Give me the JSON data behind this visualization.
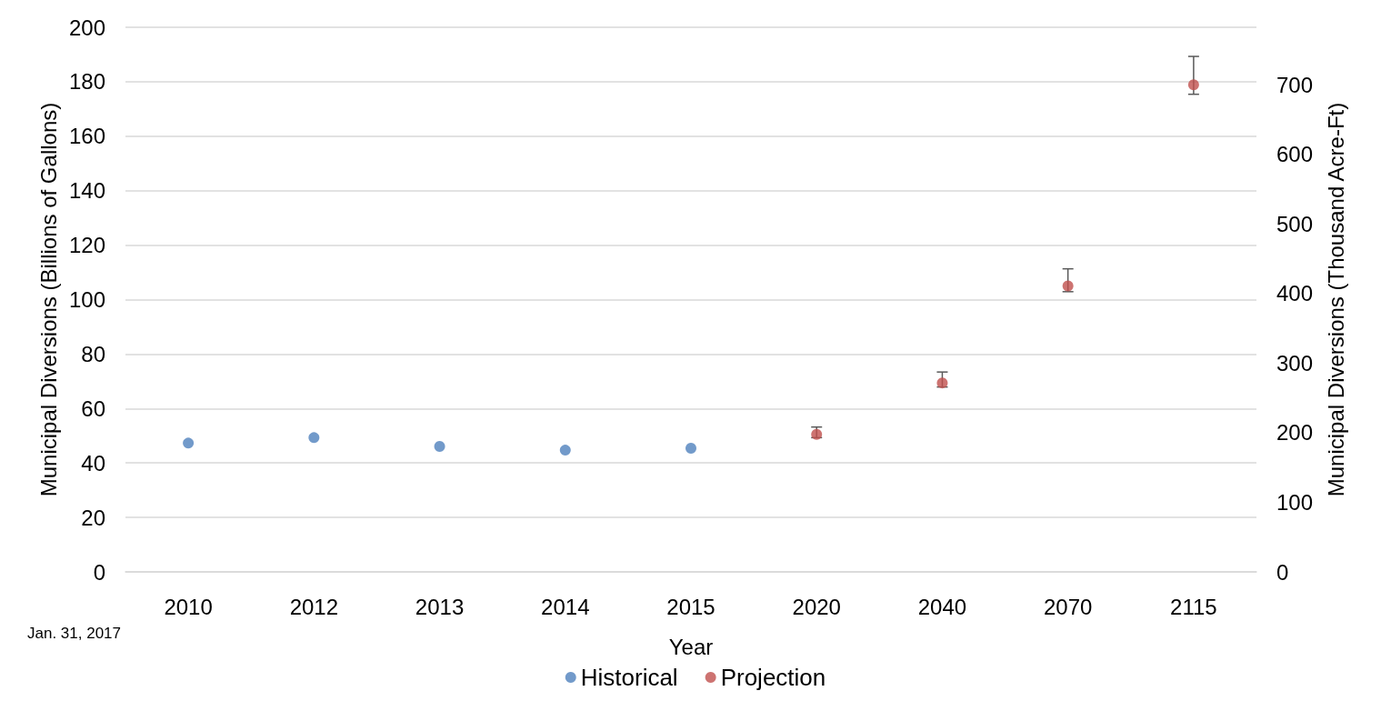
{
  "chart_data": {
    "type": "scatter",
    "xlabel": "Year",
    "ylabel": "Municipal Diversions (Billions of Gallons)",
    "y2label": "Municipal Diversions (Thousand Acre-Ft)",
    "categories": [
      "2010",
      "2012",
      "2013",
      "2014",
      "2015",
      "2020",
      "2040",
      "2070",
      "2115"
    ],
    "series": [
      {
        "name": "Historical",
        "color": "#4f81bd",
        "values": [
          47.3,
          49.3,
          46.1,
          44.7,
          45.4,
          null,
          null,
          null,
          null
        ]
      },
      {
        "name": "Projection",
        "color": "#c0504d",
        "values": [
          null,
          null,
          null,
          null,
          null,
          50.5,
          69.4,
          105.0,
          178.9
        ],
        "errors": [
          null,
          null,
          null,
          null,
          null,
          [
            49.3,
            53.2
          ],
          [
            67.9,
            73.4
          ],
          [
            102.9,
            111.3
          ],
          [
            175.4,
            189.3
          ]
        ]
      }
    ],
    "ylim": [
      0,
      200
    ],
    "yticks": [
      0,
      20,
      40,
      60,
      80,
      100,
      120,
      140,
      160,
      180,
      200
    ],
    "y2lim": [
      0,
      783
    ],
    "y2ticks": [
      0,
      100,
      200,
      300,
      400,
      500,
      600,
      700
    ],
    "grid": "y",
    "legend": "bottom",
    "marker": "circle",
    "annotations": [
      "Jan. 31, 2017"
    ]
  }
}
